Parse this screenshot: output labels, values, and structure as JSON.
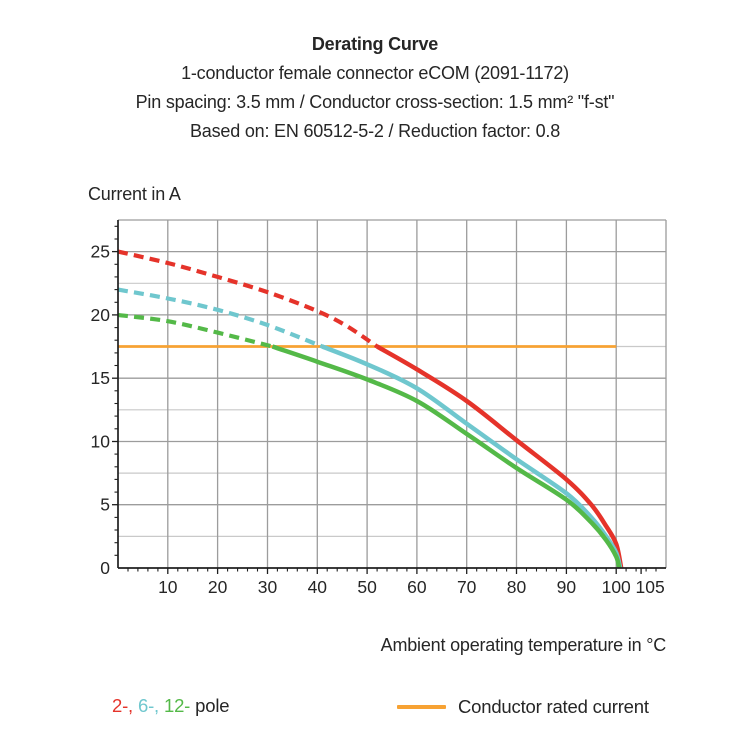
{
  "header": {
    "title": "Derating Curve",
    "subtitle_product": "1-conductor female connector eCOM (2091-1172)",
    "subtitle_specs": "Pin spacing: 3.5 mm / Conductor cross-section: 1.5 mm² \"f-st\"",
    "subtitle_basis": "Based on: EN 60512-5-2 / Reduction factor: 0.8"
  },
  "legend": {
    "pole_items": [
      {
        "label": "2-,",
        "color": "#E5332A"
      },
      {
        "label": "6-,",
        "color": "#6FC7CE"
      },
      {
        "label": "12-",
        "color": "#54B948"
      }
    ],
    "pole_suffix": "pole",
    "rated_label": "Conductor rated current"
  },
  "chart_data": {
    "type": "line",
    "title": "Derating Curve",
    "xlabel": "Ambient operating temperature in °C",
    "ylabel": "Current in A",
    "xlim": [
      0,
      110
    ],
    "ylim": [
      0,
      27.5
    ],
    "grid_on": true,
    "x_tick_labels": [
      {
        "v": 10
      },
      {
        "v": 20
      },
      {
        "v": 30
      },
      {
        "v": 40
      },
      {
        "v": 50
      },
      {
        "v": 60
      },
      {
        "v": 70
      },
      {
        "v": 80
      },
      {
        "v": 90
      },
      {
        "v": 100
      },
      {
        "v": 105,
        "dx": 9
      }
    ],
    "y_ticks": [
      0,
      5,
      10,
      15,
      20,
      25
    ],
    "grid": {
      "x_step": 10,
      "y_major_step": 5,
      "y_minor_step": 2.5,
      "x_minor_tick_step": 2,
      "y_minor_tick_step": 1
    },
    "rated_line": {
      "label": "Conductor rated current",
      "y": 17.5,
      "x_start": 0,
      "x_end": 100,
      "color": "#F7A233"
    },
    "series": [
      {
        "name": "2-pole",
        "color": "#E5332A",
        "start_current_a": 25,
        "dash_until_x": 52,
        "points": [
          [
            0,
            25
          ],
          [
            10,
            24.1
          ],
          [
            20,
            23.0
          ],
          [
            30,
            21.8
          ],
          [
            40,
            20.3
          ],
          [
            46,
            19.1
          ],
          [
            52,
            17.5
          ],
          [
            60,
            15.7
          ],
          [
            70,
            13.2
          ],
          [
            80,
            10.1
          ],
          [
            90,
            7.0
          ],
          [
            95,
            5.0
          ],
          [
            98,
            3.3
          ],
          [
            100,
            1.9
          ],
          [
            101,
            0
          ]
        ]
      },
      {
        "name": "6-pole",
        "color": "#6FC7CE",
        "start_current_a": 22,
        "dash_until_x": 41,
        "points": [
          [
            0,
            22
          ],
          [
            10,
            21.3
          ],
          [
            20,
            20.4
          ],
          [
            30,
            19.2
          ],
          [
            41,
            17.5
          ],
          [
            50,
            16.1
          ],
          [
            60,
            14.2
          ],
          [
            70,
            11.4
          ],
          [
            80,
            8.6
          ],
          [
            90,
            5.9
          ],
          [
            95,
            4.0
          ],
          [
            98,
            2.5
          ],
          [
            100,
            1.2
          ],
          [
            100.8,
            0
          ]
        ]
      },
      {
        "name": "12-pole",
        "color": "#54B948",
        "start_current_a": 20,
        "dash_until_x": 31,
        "points": [
          [
            0,
            20
          ],
          [
            10,
            19.5
          ],
          [
            20,
            18.6
          ],
          [
            31,
            17.5
          ],
          [
            40,
            16.3
          ],
          [
            50,
            14.9
          ],
          [
            60,
            13.2
          ],
          [
            70,
            10.6
          ],
          [
            80,
            7.9
          ],
          [
            90,
            5.4
          ],
          [
            95,
            3.6
          ],
          [
            98,
            2.2
          ],
          [
            100,
            0.9
          ],
          [
            100.6,
            0
          ]
        ]
      }
    ],
    "colors": {
      "grid_major": "#9C9C9C",
      "grid_minor": "#C9C9C9",
      "axis": "#1F1F1F",
      "text": "#262626"
    }
  }
}
